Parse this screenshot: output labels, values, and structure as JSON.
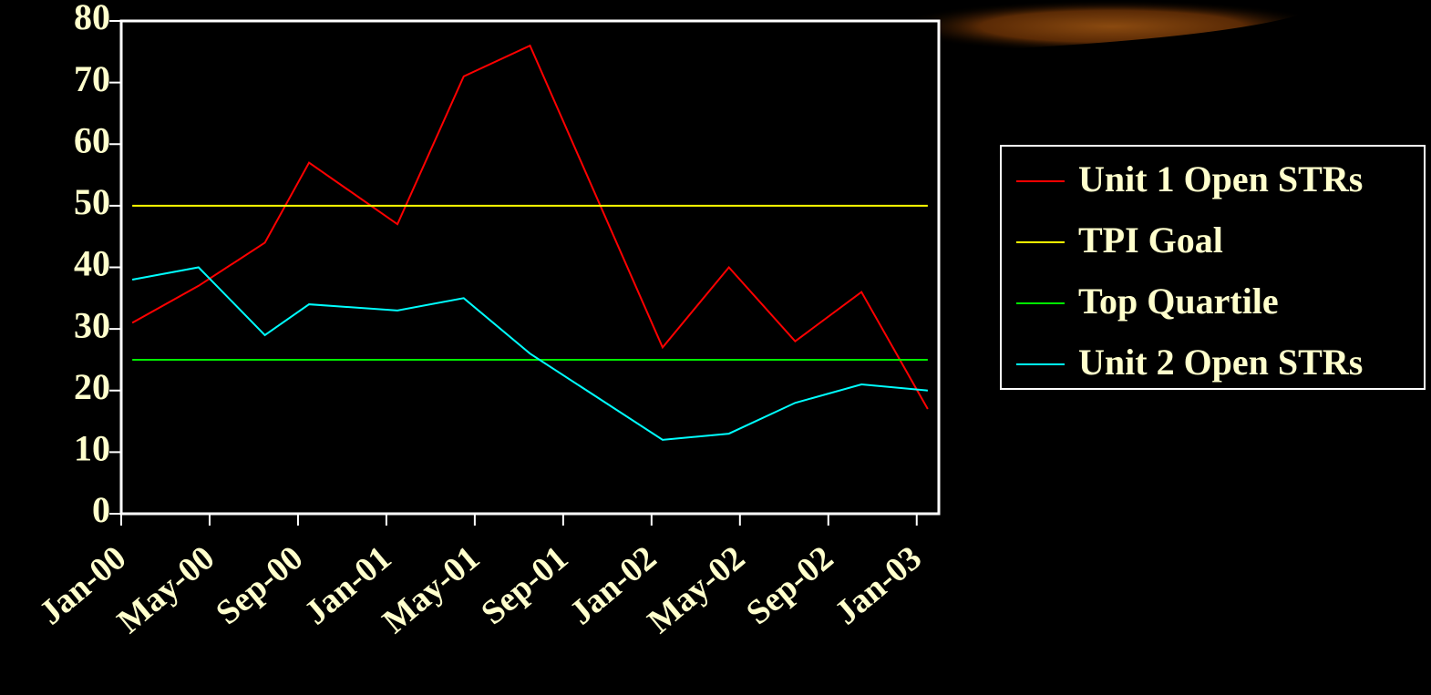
{
  "chart_data": {
    "type": "line",
    "x": [
      0.5,
      3.5,
      6.5,
      8.5,
      12.5,
      15.5,
      18.5,
      24.5,
      27.5,
      30.5,
      33.5,
      36.5
    ],
    "xlim": [
      0,
      37
    ],
    "xticks": [
      {
        "value": 0,
        "label": "Jan-00"
      },
      {
        "value": 4,
        "label": "May-00"
      },
      {
        "value": 8,
        "label": "Sep-00"
      },
      {
        "value": 12,
        "label": "Jan-01"
      },
      {
        "value": 16,
        "label": "May-01"
      },
      {
        "value": 20,
        "label": "Sep-01"
      },
      {
        "value": 24,
        "label": "Jan-02"
      },
      {
        "value": 28,
        "label": "May-02"
      },
      {
        "value": 32,
        "label": "Sep-02"
      },
      {
        "value": 36,
        "label": "Jan-03"
      }
    ],
    "ylim": [
      0,
      80
    ],
    "yticks": [
      0,
      10,
      20,
      30,
      40,
      50,
      60,
      70,
      80
    ],
    "legend": "right",
    "series": [
      {
        "name": "Unit 1 Open STRs",
        "color": "#ff0000",
        "values": [
          31,
          37,
          44,
          57,
          47,
          71,
          76,
          27,
          40,
          28,
          36,
          17
        ]
      },
      {
        "name": "TPI Goal",
        "color": "#ffff00",
        "values": [
          50,
          50,
          50,
          50,
          50,
          50,
          50,
          50,
          50,
          50,
          50,
          50
        ]
      },
      {
        "name": "Top Quartile",
        "color": "#00ee00",
        "values": [
          25,
          25,
          25,
          25,
          25,
          25,
          25,
          25,
          25,
          25,
          25,
          25
        ]
      },
      {
        "name": "Unit 2 Open STRs",
        "color": "#00ffff",
        "values": [
          38,
          40,
          29,
          34,
          33,
          35,
          26,
          12,
          13,
          18,
          21,
          20
        ]
      }
    ]
  }
}
